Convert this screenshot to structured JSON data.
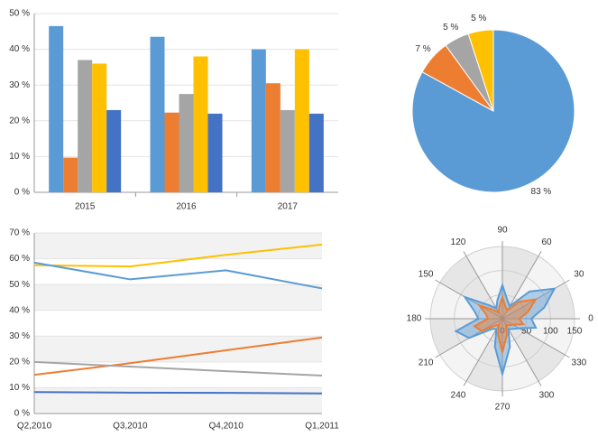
{
  "chart_data": [
    {
      "type": "bar",
      "categories": [
        "2015",
        "2016",
        "2017"
      ],
      "series": [
        {
          "color": "#5b9bd5",
          "values": [
            46.5,
            43.5,
            40
          ]
        },
        {
          "color": "#ed7d31",
          "values": [
            9.7,
            22.3,
            30.5
          ]
        },
        {
          "color": "#a5a5a5",
          "values": [
            37,
            27.5,
            23
          ]
        },
        {
          "color": "#ffc000",
          "values": [
            36,
            38,
            40
          ]
        },
        {
          "color": "#4472c4",
          "values": [
            23,
            22,
            22
          ]
        }
      ],
      "ylim": [
        0,
        50
      ],
      "yticks": [
        {
          "value": 0,
          "label": "0 %"
        },
        {
          "value": 10,
          "label": "10 %"
        },
        {
          "value": 20,
          "label": "20 %"
        },
        {
          "value": 30,
          "label": "30 %"
        },
        {
          "value": 40,
          "label": "40 %"
        },
        {
          "value": 50,
          "label": "50 %"
        }
      ],
      "grid": true
    },
    {
      "type": "pie",
      "values": [
        83,
        7,
        5,
        5
      ],
      "value_labels": [
        "83 %",
        "7 %",
        "5 %",
        "5 %"
      ],
      "colors": [
        "#5b9bd5",
        "#ed7d31",
        "#a5a5a5",
        "#ffc000"
      ]
    },
    {
      "type": "line",
      "categories": [
        "Q2,2010",
        "Q3,2010",
        "Q4,2010",
        "Q1,2011"
      ],
      "series": [
        {
          "color": "#ffc000",
          "values": [
            57.5,
            57,
            61.5,
            65.5
          ]
        },
        {
          "color": "#5b9bd5",
          "values": [
            58.5,
            52,
            55.5,
            48.5
          ]
        },
        {
          "color": "#ed7d31",
          "values": [
            15,
            19.5,
            24.5,
            29.5
          ]
        },
        {
          "color": "#a5a5a5",
          "values": [
            20,
            18.2,
            16.4,
            14.7
          ]
        },
        {
          "color": "#4472c4",
          "values": [
            8.3,
            8.1,
            8,
            7.8
          ]
        }
      ],
      "ylim": [
        0,
        70
      ],
      "yticks": [
        {
          "value": 0,
          "label": "0 %"
        },
        {
          "value": 10,
          "label": "10 %"
        },
        {
          "value": 20,
          "label": "20 %"
        },
        {
          "value": 30,
          "label": "30 %"
        },
        {
          "value": 40,
          "label": "40 %"
        },
        {
          "value": 50,
          "label": "50 %"
        },
        {
          "value": 60,
          "label": "60 %"
        },
        {
          "value": 70,
          "label": "70 %"
        }
      ],
      "grid": true
    },
    {
      "type": "polar",
      "x": [
        0,
        15,
        30,
        45,
        60,
        75,
        90,
        105,
        120,
        135,
        150,
        165,
        180,
        195,
        210,
        225,
        240,
        255,
        270,
        285,
        300,
        315,
        330,
        345
      ],
      "series": [
        {
          "color": "#5b9bd5",
          "values": [
            60,
            90,
            125,
            80,
            30,
            40,
            70,
            40,
            25,
            40,
            90,
            60,
            50,
            100,
            80,
            30,
            25,
            60,
            115,
            60,
            25,
            30,
            40,
            72
          ]
        },
        {
          "color": "#ed7d31",
          "values": [
            35,
            55,
            80,
            50,
            20,
            25,
            45,
            25,
            15,
            25,
            55,
            35,
            30,
            60,
            50,
            20,
            15,
            35,
            70,
            35,
            15,
            20,
            25,
            45
          ]
        }
      ],
      "xlim": [
        0,
        360
      ],
      "xticks": [
        0,
        30,
        60,
        90,
        120,
        150,
        180,
        210,
        240,
        270,
        300,
        330
      ],
      "ylim": [
        0,
        150
      ],
      "yticks": [
        0,
        50,
        100,
        150
      ]
    }
  ]
}
